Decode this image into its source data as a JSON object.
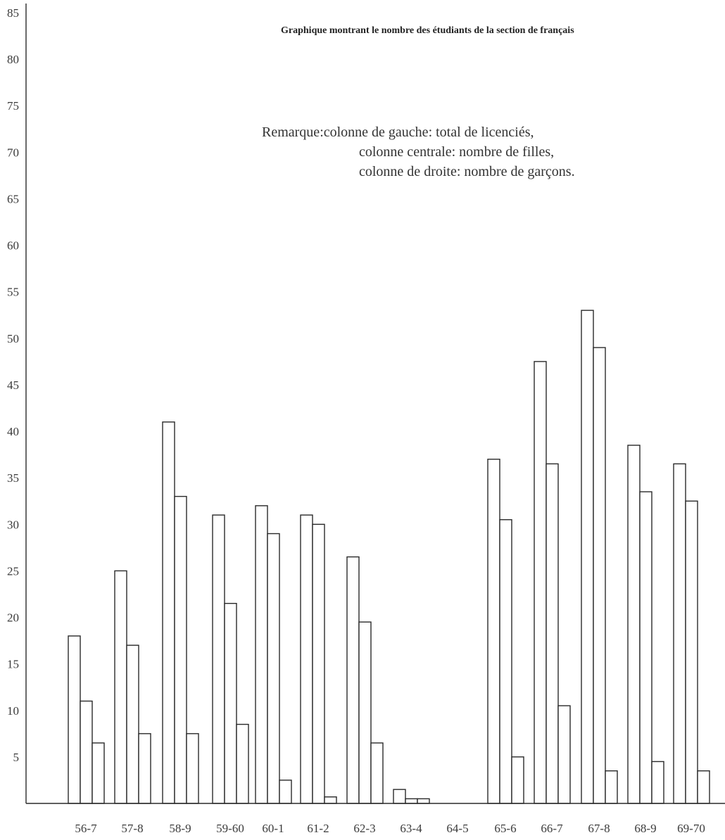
{
  "chart_data": {
    "type": "bar",
    "title": "Graphique montrant le nombre des étudiants de la section de français",
    "note_lines": [
      "Remarque:colonne de gauche: total de licenciés,",
      "colonne centrale: nombre de filles,",
      "colonne de droite: nombre de garçons."
    ],
    "xlabel": "",
    "ylabel": "",
    "ylim": [
      0,
      85
    ],
    "y_ticks": [
      5,
      10,
      15,
      20,
      25,
      30,
      35,
      40,
      45,
      50,
      55,
      60,
      65,
      70,
      75,
      80,
      85
    ],
    "categories": [
      "56-7",
      "57-8",
      "58-9",
      "59-60",
      "60-1",
      "61-2",
      "62-3",
      "63-4",
      "64-5",
      "65-6",
      "66-7",
      "67-8",
      "68-9",
      "69-70"
    ],
    "series": [
      {
        "values": [
          18,
          25,
          41,
          31,
          32,
          31,
          26.5,
          1.5,
          0,
          37,
          47.5,
          53,
          38.5,
          36.5
        ]
      },
      {
        "values": [
          11,
          17,
          33,
          21.5,
          29,
          30,
          19.5,
          0.5,
          0,
          30.5,
          36.5,
          49,
          33.5,
          32.5
        ]
      },
      {
        "values": [
          6.5,
          7.5,
          7.5,
          8.5,
          2.5,
          0.7,
          6.5,
          0.5,
          0,
          5,
          10.5,
          3.5,
          4.5,
          3.5
        ]
      }
    ],
    "grid": false,
    "legend": "none"
  }
}
